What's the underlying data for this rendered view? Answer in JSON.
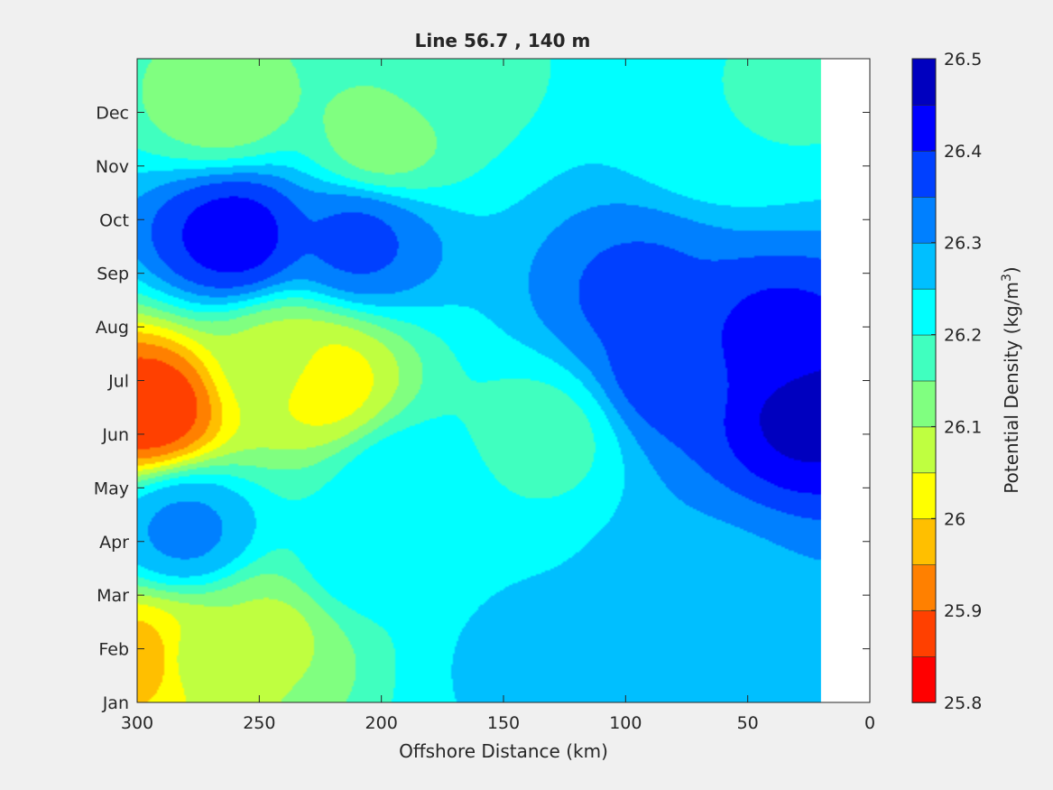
{
  "chart_data": {
    "type": "heatmap",
    "title": "Line 56.7 , 140 m",
    "xlabel": "Offshore Distance (km)",
    "ylabel": "",
    "xlim": [
      300,
      0
    ],
    "x_reversed": true,
    "xticks": [
      300,
      250,
      200,
      150,
      100,
      50,
      0
    ],
    "yticks": [
      "Jan",
      "Feb",
      "Mar",
      "Apr",
      "May",
      "Jun",
      "Jul",
      "Aug",
      "Sep",
      "Oct",
      "Nov",
      "Dec"
    ],
    "data_extent_km": [
      300,
      20
    ],
    "colorbar": {
      "label": "Potential Density (kg/m",
      "label_superscript": "3",
      "label_suffix": ")",
      "range": [
        25.8,
        26.5
      ],
      "step": 0.05,
      "ticks": [
        "25.8",
        "25.9",
        "26",
        "26.1",
        "26.2",
        "26.3",
        "26.4",
        "26.5"
      ],
      "levels": [
        "#ff0000",
        "#ff4000",
        "#ff8000",
        "#ffbf00",
        "#ffff00",
        "#bfff40",
        "#80ff80",
        "#40ffbf",
        "#00ffff",
        "#00bfff",
        "#0080ff",
        "#0040ff",
        "#0000ff",
        "#0000bf"
      ]
    },
    "features": [
      {
        "x": 295,
        "month": 5.5,
        "value": 25.86
      },
      {
        "x": 298,
        "month": 0.8,
        "value": 25.97
      },
      {
        "x": 275,
        "month": 0.8,
        "value": 26.07
      },
      {
        "x": 245,
        "month": 1.3,
        "value": 26.09
      },
      {
        "x": 225,
        "month": 6.0,
        "value": 26.02
      },
      {
        "x": 240,
        "month": 6.3,
        "value": 26.08
      },
      {
        "x": 265,
        "month": 11.2,
        "value": 26.12
      },
      {
        "x": 200,
        "month": 10.5,
        "value": 26.13
      },
      {
        "x": 260,
        "month": 8.7,
        "value": 26.42
      },
      {
        "x": 210,
        "month": 8.6,
        "value": 26.36
      },
      {
        "x": 80,
        "month": 6.2,
        "value": 26.38
      },
      {
        "x": 25,
        "month": 5.5,
        "value": 26.47
      },
      {
        "x": 40,
        "month": 6.6,
        "value": 26.42
      },
      {
        "x": 95,
        "month": 7.6,
        "value": 26.36
      },
      {
        "x": 135,
        "month": 5.0,
        "value": 26.18
      },
      {
        "x": 280,
        "month": 3.2,
        "value": 26.31
      },
      {
        "x": 210,
        "month": 2.6,
        "value": 26.22
      },
      {
        "x": 140,
        "month": 0.8,
        "value": 26.26
      },
      {
        "x": 70,
        "month": 1.8,
        "value": 26.28
      },
      {
        "x": 60,
        "month": 10.8,
        "value": 26.2
      },
      {
        "x": 30,
        "month": 11.5,
        "value": 26.19
      },
      {
        "x": 170,
        "month": 11.8,
        "value": 26.18
      },
      {
        "x": 190,
        "month": 4.0,
        "value": 26.24
      }
    ]
  }
}
